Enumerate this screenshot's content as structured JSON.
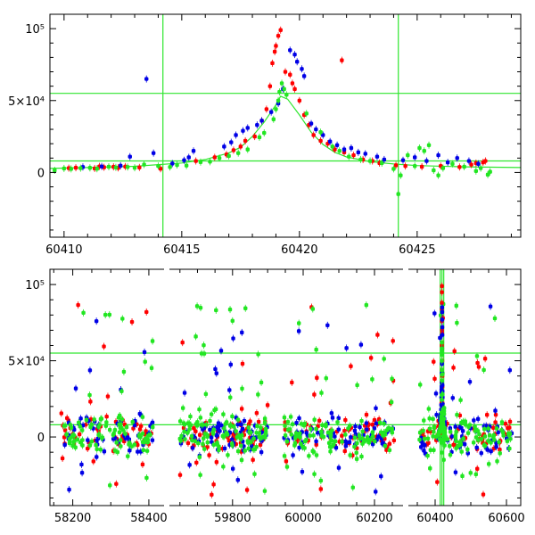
{
  "colors": {
    "red": "#ff0000",
    "blue": "#0000e6",
    "green": "#22e622",
    "line": "#2ee62e",
    "frame": "#000000"
  },
  "chart_data": [
    {
      "type": "scatter",
      "title": "",
      "xlabel": "",
      "ylabel": "",
      "xlim": [
        60409.4,
        60429.4
      ],
      "ylim": [
        -45000,
        110000
      ],
      "x_ticks": [
        60410,
        60415,
        60420,
        60425
      ],
      "x_tick_labels": [
        "60410",
        "60415",
        "60420",
        "60425"
      ],
      "y_ticks": [
        0,
        50000,
        100000
      ],
      "y_tick_labels": [
        "0",
        "5×10⁴",
        "10⁵"
      ],
      "grid": false,
      "reference_lines": {
        "horizontal": [
          8000,
          55000
        ],
        "vertical": [
          60414.2,
          60424.2
        ]
      },
      "model_curve": {
        "x": [
          60409.4,
          60411,
          60413,
          60415,
          60416,
          60417,
          60417.5,
          60418,
          60418.5,
          60419,
          60419.2,
          60419.5,
          60420,
          60420.5,
          60421,
          60421.5,
          60422,
          60423,
          60424,
          60425,
          60427,
          60429.4
        ],
        "y": [
          2800,
          3400,
          4300,
          6600,
          9000,
          13500,
          17500,
          25000,
          35000,
          47000,
          53000,
          51000,
          40000,
          28000,
          19500,
          14000,
          10800,
          7500,
          5900,
          4800,
          3900,
          3400
        ]
      },
      "series": [
        {
          "color": "red",
          "points": [
            [
              60410.2,
              3000
            ],
            [
              60410.5,
              3300
            ],
            [
              60411.3,
              2800
            ],
            [
              60411.5,
              4200
            ],
            [
              60411.7,
              3600
            ],
            [
              60412.1,
              3900
            ],
            [
              60412.3,
              3200
            ],
            [
              60412.6,
              4100
            ],
            [
              60413.2,
              3500
            ],
            [
              60414.1,
              2600
            ],
            [
              60415.6,
              8000
            ],
            [
              60416.4,
              10500
            ],
            [
              60416.9,
              12500
            ],
            [
              60417.2,
              15500
            ],
            [
              60417.5,
              18000
            ],
            [
              60417.7,
              22000
            ],
            [
              60418.1,
              25000
            ],
            [
              60418.4,
              36000
            ],
            [
              60418.6,
              44000
            ],
            [
              60418.75,
              60000
            ],
            [
              60418.85,
              76000
            ],
            [
              60418.95,
              84000
            ],
            [
              60419.0,
              88000
            ],
            [
              60419.1,
              95000
            ],
            [
              60419.2,
              99000
            ],
            [
              60419.4,
              70000
            ],
            [
              60419.6,
              68000
            ],
            [
              60419.7,
              62000
            ],
            [
              60419.8,
              58000
            ],
            [
              60420.0,
              50000
            ],
            [
              60420.2,
              40000
            ],
            [
              60420.4,
              33000
            ],
            [
              60420.6,
              26000
            ],
            [
              60420.9,
              22000
            ],
            [
              60421.2,
              20000
            ],
            [
              60421.5,
              16000
            ],
            [
              60421.9,
              14000
            ],
            [
              60421.8,
              78000
            ],
            [
              60422.3,
              12000
            ],
            [
              60422.7,
              9000
            ],
            [
              60423.1,
              8000
            ],
            [
              60423.4,
              6500
            ],
            [
              60424.1,
              5000
            ],
            [
              60424.5,
              4500
            ],
            [
              60425.2,
              4000
            ],
            [
              60426.0,
              4500
            ],
            [
              60426.8,
              3800
            ],
            [
              60427.3,
              5500
            ],
            [
              60427.5,
              6500
            ],
            [
              60427.8,
              7000
            ],
            [
              60427.9,
              8000
            ]
          ]
        },
        {
          "color": "blue",
          "points": [
            [
              60410.8,
              3800
            ],
            [
              60411.6,
              4200
            ],
            [
              60412.4,
              4700
            ],
            [
              60412.8,
              11000
            ],
            [
              60413.5,
              65000
            ],
            [
              60413.8,
              13500
            ],
            [
              60414.6,
              6200
            ],
            [
              60415.1,
              8500
            ],
            [
              60415.3,
              10500
            ],
            [
              60415.5,
              15000
            ],
            [
              60416.8,
              18000
            ],
            [
              60417.1,
              21000
            ],
            [
              60417.3,
              26000
            ],
            [
              60417.6,
              29000
            ],
            [
              60417.8,
              31000
            ],
            [
              60418.2,
              33000
            ],
            [
              60418.4,
              36000
            ],
            [
              60418.8,
              42000
            ],
            [
              60419.1,
              48000
            ],
            [
              60419.3,
              58000
            ],
            [
              60419.6,
              85000
            ],
            [
              60419.8,
              82000
            ],
            [
              60419.9,
              77000
            ],
            [
              60420.1,
              72000
            ],
            [
              60420.2,
              67000
            ],
            [
              60420.5,
              34000
            ],
            [
              60420.7,
              30000
            ],
            [
              60421.0,
              26000
            ],
            [
              60421.3,
              21500
            ],
            [
              60421.6,
              19000
            ],
            [
              60421.9,
              16000
            ],
            [
              60422.2,
              17000
            ],
            [
              60422.5,
              14000
            ],
            [
              60422.8,
              13000
            ],
            [
              60423.3,
              11000
            ],
            [
              60423.6,
              9000
            ],
            [
              60424.4,
              8500
            ],
            [
              60424.9,
              10500
            ],
            [
              60425.4,
              8000
            ],
            [
              60425.9,
              12000
            ],
            [
              60426.3,
              7000
            ],
            [
              60426.7,
              10000
            ],
            [
              60427.2,
              8000
            ],
            [
              60427.6,
              6000
            ]
          ]
        },
        {
          "color": "green",
          "points": [
            [
              60409.6,
              1500
            ],
            [
              60410.0,
              2800
            ],
            [
              60410.3,
              2500
            ],
            [
              60410.7,
              3000
            ],
            [
              60411.1,
              3200
            ],
            [
              60411.4,
              2600
            ],
            [
              60411.9,
              4000
            ],
            [
              60412.2,
              3500
            ],
            [
              60412.7,
              3800
            ],
            [
              60413.0,
              3300
            ],
            [
              60413.4,
              5500
            ],
            [
              60414.0,
              4500
            ],
            [
              60414.5,
              3800
            ],
            [
              60414.8,
              5200
            ],
            [
              60415.2,
              4800
            ],
            [
              60415.8,
              7200
            ],
            [
              60416.2,
              7500
            ],
            [
              60416.6,
              10000
            ],
            [
              60417.0,
              11500
            ],
            [
              60417.4,
              13500
            ],
            [
              60417.8,
              16000
            ],
            [
              60418.3,
              24500
            ],
            [
              60418.5,
              27500
            ],
            [
              60418.9,
              37000
            ],
            [
              60419.0,
              44000
            ],
            [
              60419.1,
              50000
            ],
            [
              60419.15,
              56000
            ],
            [
              60419.25,
              62000
            ],
            [
              60419.35,
              58000
            ],
            [
              60419.45,
              54000
            ],
            [
              60420.3,
              41000
            ],
            [
              60420.9,
              28000
            ],
            [
              60421.4,
              18000
            ],
            [
              60421.7,
              15000
            ],
            [
              60422.1,
              11000
            ],
            [
              60422.6,
              9000
            ],
            [
              60423.0,
              8000
            ],
            [
              60423.5,
              6500
            ],
            [
              60424.0,
              2500
            ],
            [
              60424.2,
              -15000
            ],
            [
              60424.3,
              -2000
            ],
            [
              60424.6,
              12000
            ],
            [
              60424.9,
              4500
            ],
            [
              60425.1,
              17000
            ],
            [
              60425.3,
              15000
            ],
            [
              60425.5,
              19000
            ],
            [
              60425.7,
              1500
            ],
            [
              60425.9,
              -2000
            ],
            [
              60426.1,
              3000
            ],
            [
              60426.5,
              6000
            ],
            [
              60427.0,
              4000
            ],
            [
              60427.5,
              1000
            ],
            [
              60427.7,
              3000
            ],
            [
              60428.0,
              -1500
            ],
            [
              60428.1,
              500
            ]
          ]
        }
      ]
    },
    {
      "type": "scatter",
      "title": "",
      "xlabel": "",
      "ylabel": "",
      "broken_axis": true,
      "segments": [
        {
          "xlim": [
            58140,
            58440
          ],
          "x_ticks": [
            58200,
            58400
          ],
          "x_tick_labels": [
            "58200",
            "58400"
          ]
        },
        {
          "xlim": [
            59620,
            59920
          ],
          "x_ticks": [
            59800
          ],
          "x_tick_labels": [
            "59800"
          ]
        },
        {
          "xlim": [
            59920,
            60280
          ],
          "x_ticks": [
            60000,
            60200
          ],
          "x_tick_labels": [
            "60000",
            "60200"
          ]
        },
        {
          "xlim": [
            60325,
            60640
          ],
          "x_ticks": [
            60400,
            60600
          ],
          "x_tick_labels": [
            "60400",
            "60600"
          ]
        }
      ],
      "ylim": [
        -45000,
        110000
      ],
      "y_ticks": [
        0,
        50000,
        100000
      ],
      "y_tick_labels": [
        "0",
        "5×10⁴",
        "10⁵"
      ],
      "grid": false,
      "reference_lines": {
        "horizontal": [
          8000,
          55000
        ],
        "vertical": [
          60414.2,
          60419.3,
          60424.2
        ]
      },
      "seasons": [
        {
          "xrange": [
            58170,
            58410
          ],
          "npoints": [
            55,
            55,
            95
          ]
        },
        {
          "xrange": [
            59650,
            59900
          ],
          "npoints": [
            70,
            70,
            120
          ]
        },
        {
          "xrange": [
            59945,
            60255
          ],
          "npoints": [
            70,
            70,
            110
          ]
        },
        {
          "xrange": [
            60355,
            60615
          ],
          "npoints": [
            60,
            60,
            100
          ]
        }
      ]
    }
  ]
}
